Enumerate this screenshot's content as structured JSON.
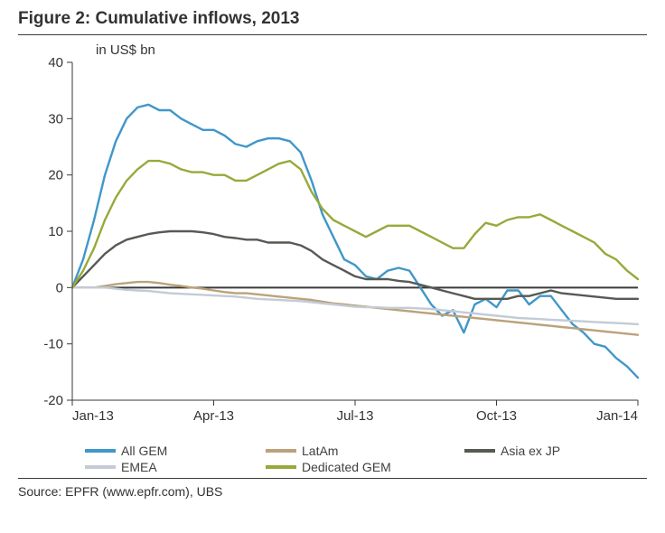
{
  "figure": {
    "title": "Figure 2: Cumulative inflows, 2013",
    "source": "Source:  EPFR (www.epfr.com), UBS",
    "y_label": "in US$ bn",
    "chart": {
      "type": "line",
      "background_color": "#ffffff",
      "axis_color": "#3a3a3a",
      "tick_color": "#3a3a3a",
      "tick_label_color": "#333333",
      "tick_label_fontsize": 15,
      "line_width": 2.4,
      "x": {
        "min": 0,
        "max": 52,
        "ticks": [
          0,
          13,
          26,
          39,
          52
        ],
        "tick_labels": [
          "Jan-13",
          "Apr-13",
          "Jul-13",
          "Oct-13",
          "Jan-14"
        ]
      },
      "y": {
        "min": -20,
        "max": 40,
        "ticks": [
          -20,
          -10,
          0,
          10,
          20,
          30,
          40
        ],
        "zero_line_width": 2
      },
      "series": [
        {
          "name": "All GEM",
          "color": "#4097c9",
          "data": [
            0,
            5,
            12,
            20,
            26,
            30,
            32,
            32.5,
            31.5,
            31.5,
            30,
            29,
            28,
            28,
            27,
            25.5,
            25,
            26,
            26.5,
            26.5,
            26,
            24,
            19,
            13,
            9,
            5,
            4,
            2,
            1.5,
            3,
            3.5,
            3,
            0,
            -3,
            -5,
            -4,
            -8,
            -3,
            -2,
            -3.5,
            -0.5,
            -0.5,
            -3,
            -1.5,
            -1.5,
            -4,
            -6.5,
            -8,
            -10,
            -10.5,
            -12.5,
            -14,
            -16
          ]
        },
        {
          "name": "LatAm",
          "color": "#bba27b",
          "data": [
            0,
            0,
            0,
            0.3,
            0.6,
            0.8,
            1,
            1,
            0.8,
            0.5,
            0.3,
            0,
            -0.2,
            -0.5,
            -0.8,
            -1,
            -1,
            -1.2,
            -1.4,
            -1.6,
            -1.8,
            -2,
            -2.2,
            -2.5,
            -2.8,
            -3,
            -3.2,
            -3.4,
            -3.6,
            -3.8,
            -4,
            -4.2,
            -4.4,
            -4.6,
            -4.8,
            -5,
            -5.2,
            -5.4,
            -5.6,
            -5.8,
            -6,
            -6.2,
            -6.4,
            -6.6,
            -6.8,
            -7,
            -7.2,
            -7.4,
            -7.6,
            -7.8,
            -8,
            -8.2,
            -8.4
          ]
        },
        {
          "name": "Asia ex JP",
          "color": "#555a53",
          "data": [
            0,
            2,
            4,
            6,
            7.5,
            8.5,
            9,
            9.5,
            9.8,
            10,
            10,
            10,
            9.8,
            9.5,
            9,
            8.8,
            8.5,
            8.5,
            8,
            8,
            8,
            7.5,
            6.5,
            5,
            4,
            3,
            2,
            1.5,
            1.5,
            1.5,
            1.2,
            1,
            0.5,
            0,
            -0.5,
            -1,
            -1.5,
            -2,
            -2,
            -2,
            -2,
            -1.5,
            -1.5,
            -1,
            -0.5,
            -1,
            -1.2,
            -1.4,
            -1.6,
            -1.8,
            -2,
            -2,
            -2
          ]
        },
        {
          "name": "EMEA",
          "color": "#c3cbd6",
          "data": [
            0,
            0,
            0,
            0,
            -0.2,
            -0.4,
            -0.5,
            -0.6,
            -0.8,
            -1,
            -1.1,
            -1.2,
            -1.3,
            -1.4,
            -1.5,
            -1.6,
            -1.8,
            -2,
            -2.1,
            -2.2,
            -2.3,
            -2.4,
            -2.6,
            -2.8,
            -3,
            -3.2,
            -3.4,
            -3.5,
            -3.5,
            -3.6,
            -3.6,
            -3.6,
            -3.7,
            -3.8,
            -4,
            -4.2,
            -4.4,
            -4.6,
            -4.8,
            -5,
            -5.2,
            -5.4,
            -5.5,
            -5.6,
            -5.7,
            -5.8,
            -5.9,
            -6,
            -6.1,
            -6.2,
            -6.3,
            -6.4,
            -6.5
          ]
        },
        {
          "name": "Dedicated GEM",
          "color": "#97a93a",
          "data": [
            0,
            3,
            7,
            12,
            16,
            19,
            21,
            22.5,
            22.5,
            22,
            21,
            20.5,
            20.5,
            20,
            20,
            19,
            19,
            20,
            21,
            22,
            22.5,
            21,
            17,
            14,
            12,
            11,
            10,
            9,
            10,
            11,
            11,
            11,
            10,
            9,
            8,
            7,
            7,
            9.5,
            11.5,
            11,
            12,
            12.5,
            12.5,
            13,
            12,
            11,
            10,
            9,
            8,
            6,
            5,
            3,
            1.5
          ]
        }
      ],
      "legend": {
        "position": "bottom",
        "columns": 3,
        "fontsize": 14,
        "swatch_width": 34,
        "swatch_height": 4
      }
    }
  }
}
